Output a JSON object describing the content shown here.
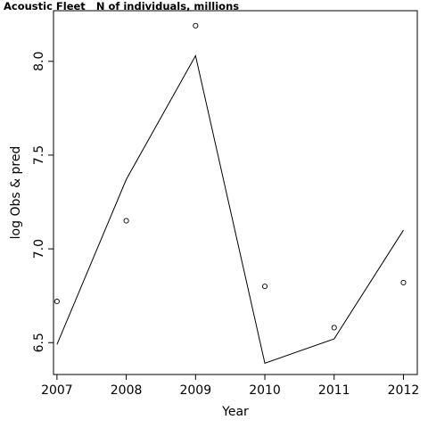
{
  "chart_data": {
    "type": "line",
    "title": "Acoustic Fleet   N of individuals, millions",
    "xlabel": "Year",
    "ylabel": "log Obs & pred",
    "x": [
      2007,
      2008,
      2009,
      2010,
      2011,
      2012
    ],
    "xlim": [
      2006.95,
      2012.2
    ],
    "ylim": [
      6.33,
      8.27
    ],
    "xticks": [
      2007,
      2008,
      2009,
      2010,
      2011,
      2012
    ],
    "yticks": [
      6.5,
      7.0,
      7.5,
      8.0
    ],
    "ytick_labels": [
      "6.5",
      "7.0",
      "7.5",
      "8.0"
    ],
    "grid": false,
    "series": [
      {
        "kind": "points",
        "values": [
          6.72,
          7.15,
          8.19,
          6.8,
          6.58,
          6.82
        ]
      },
      {
        "kind": "line",
        "values": [
          6.49,
          7.37,
          8.03,
          6.39,
          6.52,
          7.1
        ]
      }
    ]
  }
}
